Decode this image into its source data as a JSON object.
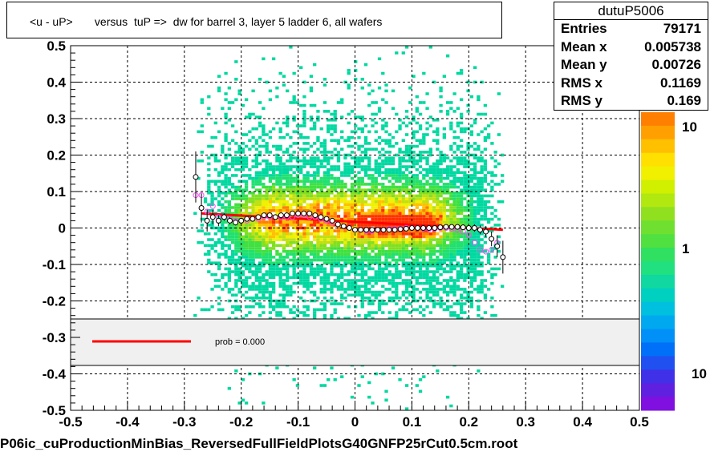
{
  "title": "<u - uP>       versus  tuP =>  dw for barrel 3, layer 5 ladder 6, all wafers",
  "stats": {
    "name": "dutuP5006",
    "rows": [
      {
        "label": "Entries",
        "value": "79171"
      },
      {
        "label": "Mean x",
        "value": "0.005738"
      },
      {
        "label": "Mean y",
        "value": "0.00726"
      },
      {
        "label": "RMS x",
        "value": "0.1169"
      },
      {
        "label": "RMS y",
        "value": "0.169"
      }
    ]
  },
  "legend": {
    "prob_label": "prob = 0.000",
    "line_color": "#ff0000"
  },
  "footer": "P06ic_cuProductionMinBias_ReversedFullFieldPlotsG40GNFP25rCut0.5cm.root",
  "palette_labels": [
    "10",
    "1",
    "10"
  ],
  "chart_data": {
    "type": "heatmap",
    "xlim": [
      -0.5,
      0.5
    ],
    "ylim": [
      -0.5,
      0.5
    ],
    "x_ticks": [
      "-0.5",
      "-0.4",
      "-0.3",
      "-0.2",
      "-0.1",
      "0",
      "0.1",
      "0.2",
      "0.3",
      "0.4",
      "0.5"
    ],
    "y_ticks": [
      "-0.5",
      "-0.4",
      "-0.3",
      "-0.2",
      "-0.1",
      "0",
      "0.1",
      "0.2",
      "0.3",
      "0.4",
      "0.5"
    ],
    "grid": true,
    "z_scale": "log",
    "colors": {
      "fit_line": "#ff0000",
      "profile_black": "#000000",
      "profile_magenta": "#ff44ff"
    },
    "fit_line": {
      "x": [
        -0.27,
        0.26
      ],
      "y": [
        0.04,
        -0.005
      ]
    },
    "profile_black": {
      "x": [
        -0.28,
        -0.27,
        -0.26,
        -0.25,
        -0.24,
        -0.23,
        -0.22,
        -0.21,
        -0.2,
        -0.19,
        -0.18,
        -0.17,
        -0.16,
        -0.15,
        -0.14,
        -0.13,
        -0.12,
        -0.11,
        -0.1,
        -0.09,
        -0.08,
        -0.07,
        -0.06,
        -0.05,
        -0.04,
        -0.03,
        -0.02,
        -0.01,
        0,
        0.01,
        0.02,
        0.03,
        0.04,
        0.05,
        0.06,
        0.07,
        0.08,
        0.09,
        0.1,
        0.11,
        0.12,
        0.13,
        0.14,
        0.15,
        0.16,
        0.17,
        0.18,
        0.19,
        0.2,
        0.21,
        0.22,
        0.23,
        0.24,
        0.25,
        0.26
      ],
      "y": [
        0.14,
        0.055,
        0.02,
        0.03,
        0.02,
        0.03,
        0.02,
        0.015,
        0.02,
        0.025,
        0.025,
        0.03,
        0.035,
        0.035,
        0.03,
        0.035,
        0.035,
        0.04,
        0.04,
        0.04,
        0.04,
        0.035,
        0.03,
        0.025,
        0.02,
        0.01,
        0.005,
        0.0,
        -0.005,
        -0.005,
        -0.005,
        -0.005,
        -0.005,
        -0.005,
        -0.005,
        -0.005,
        -0.003,
        -0.002,
        0.0,
        0.0,
        0.0,
        0.0,
        0.0,
        0.002,
        0.003,
        0.003,
        0.003,
        0.002,
        0.0,
        0.0,
        -0.005,
        -0.01,
        -0.03,
        -0.05,
        -0.08
      ],
      "err": [
        0.07,
        0.04,
        0.03,
        0.02,
        0.015,
        0.01,
        0.01,
        0.008,
        0.008,
        0.007,
        0.006,
        0.006,
        0.005,
        0.005,
        0.005,
        0.005,
        0.005,
        0.005,
        0.005,
        0.005,
        0.005,
        0.005,
        0.005,
        0.005,
        0.005,
        0.005,
        0.005,
        0.005,
        0.005,
        0.005,
        0.005,
        0.005,
        0.005,
        0.005,
        0.005,
        0.005,
        0.005,
        0.005,
        0.005,
        0.005,
        0.005,
        0.005,
        0.005,
        0.005,
        0.006,
        0.006,
        0.007,
        0.008,
        0.008,
        0.01,
        0.012,
        0.015,
        0.02,
        0.03,
        0.045
      ]
    },
    "profile_magenta": {
      "x": [
        -0.28,
        -0.27,
        -0.26,
        -0.25,
        -0.24,
        -0.23,
        -0.22,
        -0.21,
        -0.2,
        -0.19,
        -0.18,
        -0.17,
        -0.16,
        -0.15,
        -0.14,
        -0.13,
        -0.12,
        -0.11,
        -0.1,
        -0.09,
        -0.08,
        -0.07,
        -0.06,
        -0.05,
        -0.04,
        -0.03,
        -0.02,
        -0.01,
        0,
        0.01,
        0.02,
        0.03,
        0.04,
        0.05,
        0.06,
        0.07,
        0.08,
        0.09,
        0.1,
        0.11,
        0.12,
        0.13,
        0.14,
        0.15,
        0.16,
        0.17,
        0.18,
        0.19,
        0.2,
        0.21,
        0.22,
        0.23,
        0.24,
        0.25
      ],
      "y": [
        0.09,
        0.09,
        0.045,
        0.06,
        0.03,
        0.03,
        0.025,
        0.02,
        0.02,
        0.02,
        0.025,
        0.025,
        0.03,
        0.03,
        0.03,
        0.03,
        0.03,
        0.03,
        0.035,
        0.035,
        0.03,
        0.03,
        0.025,
        0.02,
        0.015,
        0.01,
        0.005,
        0.0,
        -0.005,
        -0.005,
        -0.008,
        -0.008,
        -0.005,
        -0.005,
        -0.003,
        -0.003,
        -0.002,
        0.0,
        0.0,
        0.0,
        -0.002,
        -0.003,
        -0.002,
        0.0,
        0.0,
        -0.002,
        -0.005,
        -0.01,
        -0.02,
        -0.04,
        -0.06,
        -0.065,
        -0.06,
        -0.04
      ]
    }
  }
}
